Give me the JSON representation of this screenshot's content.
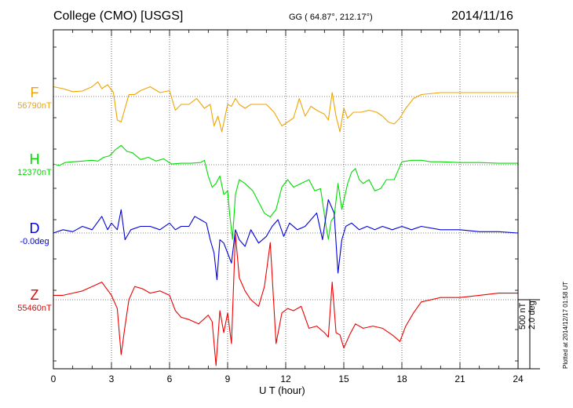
{
  "header": {
    "title": "College (CMO)  [USGS]",
    "coords": "GG ( 64.87°, 212.17°)",
    "date": "2014/11/16"
  },
  "footer": {
    "plotted": "Plotted at 2014/12/17 01:58 UT"
  },
  "scale": {
    "nt": "500 nT",
    "deg": "2.0 deg"
  },
  "chart_data": {
    "type": "line",
    "xlabel": "U T (hour)",
    "xlim": [
      0,
      24
    ],
    "xticks": [
      0,
      3,
      6,
      9,
      12,
      15,
      18,
      21,
      24
    ],
    "grid": true,
    "colors": {
      "F": "#f0a400",
      "H": "#00dd00",
      "D": "#0000dd",
      "Z": "#ee0000"
    },
    "series": [
      {
        "name": "F",
        "baseline_label": "56790nT",
        "x": [
          0,
          0.5,
          1,
          1.5,
          2,
          2.3,
          2.5,
          2.8,
          3.1,
          3.3,
          3.5,
          3.7,
          3.9,
          4.2,
          4.5,
          5,
          5.5,
          6,
          6.3,
          6.6,
          7,
          7.4,
          7.8,
          8.1,
          8.3,
          8.5,
          8.7,
          9,
          9.2,
          9.4,
          9.6,
          9.9,
          10.2,
          10.6,
          11,
          11.4,
          11.8,
          12.1,
          12.4,
          12.7,
          13,
          13.3,
          13.6,
          14,
          14.2,
          14.4,
          14.6,
          14.8,
          15,
          15.2,
          15.5,
          15.9,
          16.3,
          16.7,
          17,
          17.3,
          17.6,
          17.9,
          18.2,
          18.6,
          19,
          20,
          21,
          22,
          23,
          24
        ],
        "y": [
          50,
          40,
          25,
          28,
          50,
          75,
          40,
          60,
          20,
          -120,
          -130,
          -60,
          10,
          10,
          30,
          50,
          20,
          30,
          -70,
          -40,
          -40,
          -10,
          -60,
          -40,
          -150,
          -100,
          -180,
          -40,
          -50,
          -10,
          -40,
          -60,
          -40,
          -40,
          -40,
          -80,
          -150,
          -130,
          -110,
          -10,
          -100,
          -50,
          -70,
          -90,
          -120,
          20,
          -100,
          -180,
          -60,
          -110,
          -80,
          -80,
          -70,
          -80,
          -100,
          -130,
          -140,
          -110,
          -60,
          -10,
          10,
          20,
          20,
          20,
          20,
          20
        ]
      },
      {
        "name": "H",
        "baseline_label": "12370nT",
        "x": [
          0,
          0.3,
          0.6,
          1,
          1.5,
          2,
          2.3,
          2.6,
          2.9,
          3.2,
          3.5,
          3.8,
          4.1,
          4.5,
          4.9,
          5.3,
          5.7,
          6.1,
          6.6,
          7.1,
          7.6,
          7.8,
          8,
          8.2,
          8.4,
          8.6,
          8.8,
          9,
          9.1,
          9.25,
          9.4,
          9.6,
          9.9,
          10.3,
          10.6,
          10.9,
          11.2,
          11.5,
          11.8,
          12.1,
          12.4,
          12.8,
          13.2,
          13.5,
          13.8,
          14.1,
          14.2,
          14.35,
          14.5,
          14.7,
          14.9,
          15.2,
          15.4,
          15.6,
          15.8,
          16,
          16.3,
          16.6,
          16.9,
          17.2,
          17.6,
          18,
          18.5,
          19,
          19.5,
          20,
          21,
          22,
          23,
          24
        ],
        "y": [
          10,
          -10,
          30,
          40,
          50,
          60,
          50,
          100,
          120,
          200,
          260,
          180,
          160,
          70,
          100,
          50,
          80,
          10,
          20,
          20,
          30,
          60,
          -150,
          -300,
          -250,
          -150,
          -400,
          -350,
          -650,
          -1000,
          -400,
          -200,
          -250,
          -350,
          -500,
          -650,
          -700,
          -600,
          -300,
          -200,
          -300,
          -250,
          -200,
          -350,
          -320,
          -850,
          -1000,
          -750,
          -700,
          -250,
          -600,
          -250,
          -100,
          -50,
          -200,
          -250,
          -200,
          -350,
          -320,
          -200,
          -200,
          40,
          60,
          60,
          40,
          40,
          30,
          30,
          20,
          20
        ]
      },
      {
        "name": "D",
        "baseline_label": "-0.0deg",
        "x": [
          0,
          0.5,
          1,
          1.5,
          2,
          2.5,
          2.8,
          3,
          3.3,
          3.5,
          3.7,
          4,
          4.5,
          5,
          5.5,
          6,
          6.3,
          6.6,
          7,
          7.3,
          7.6,
          7.9,
          8.1,
          8.3,
          8.45,
          8.6,
          8.8,
          9,
          9.2,
          9.4,
          9.6,
          9.9,
          10.2,
          10.6,
          11,
          11.3,
          11.6,
          11.9,
          12.2,
          12.6,
          13,
          13.3,
          13.6,
          13.9,
          14.2,
          14.5,
          14.7,
          14.9,
          15.1,
          15.4,
          15.8,
          16.2,
          16.6,
          17,
          17.5,
          18,
          18.5,
          19,
          20,
          21,
          22,
          23,
          24
        ],
        "y": [
          0,
          0.05,
          0.02,
          0.1,
          0.05,
          0.25,
          0.05,
          0.15,
          0.05,
          0.35,
          -0.1,
          0.05,
          0.1,
          0.1,
          0.05,
          0.15,
          0.05,
          0.1,
          0.1,
          0.25,
          0.2,
          0.15,
          -0.1,
          -0.3,
          -0.7,
          -0.1,
          -0.15,
          -0.3,
          -0.45,
          0.05,
          -0.1,
          -0.2,
          0.05,
          -0.15,
          -0.05,
          0.1,
          0.2,
          -0.05,
          0.15,
          0.05,
          0.1,
          0.2,
          0.3,
          -0.1,
          0.5,
          0.3,
          -0.6,
          -0.1,
          0.1,
          0.15,
          0.05,
          0.1,
          0.05,
          0.1,
          0.05,
          0.1,
          0.05,
          0.1,
          0.05,
          0.05,
          0.02,
          0.02,
          0
        ]
      },
      {
        "name": "Z",
        "baseline_label": "55460nT",
        "x": [
          0,
          0.5,
          1,
          1.5,
          2,
          2.5,
          3,
          3.3,
          3.5,
          3.7,
          3.9,
          4.2,
          4.6,
          5,
          5.5,
          6,
          6.3,
          6.6,
          7,
          7.5,
          8,
          8.2,
          8.4,
          8.6,
          8.8,
          9,
          9.2,
          9.4,
          9.6,
          9.9,
          10.2,
          10.6,
          10.9,
          11.2,
          11.5,
          11.8,
          12.1,
          12.4,
          12.8,
          13.2,
          13.6,
          14,
          14.2,
          14.4,
          14.6,
          14.8,
          15,
          15.3,
          15.6,
          16,
          16.5,
          17,
          17.5,
          17.9,
          18.2,
          18.6,
          19,
          20,
          21,
          22,
          23,
          24
        ],
        "y": [
          20,
          20,
          30,
          40,
          60,
          80,
          20,
          -40,
          -250,
          -120,
          0,
          60,
          50,
          30,
          40,
          20,
          -50,
          -80,
          -90,
          -110,
          -70,
          -100,
          -300,
          -50,
          -150,
          -60,
          -200,
          300,
          100,
          40,
          0,
          -30,
          60,
          260,
          -200,
          -60,
          -40,
          -50,
          -30,
          -130,
          -120,
          -150,
          -170,
          80,
          -150,
          -160,
          -220,
          -160,
          -110,
          -130,
          -120,
          -130,
          -160,
          -190,
          -120,
          -60,
          -10,
          10,
          10,
          20,
          30,
          30
        ]
      }
    ]
  }
}
